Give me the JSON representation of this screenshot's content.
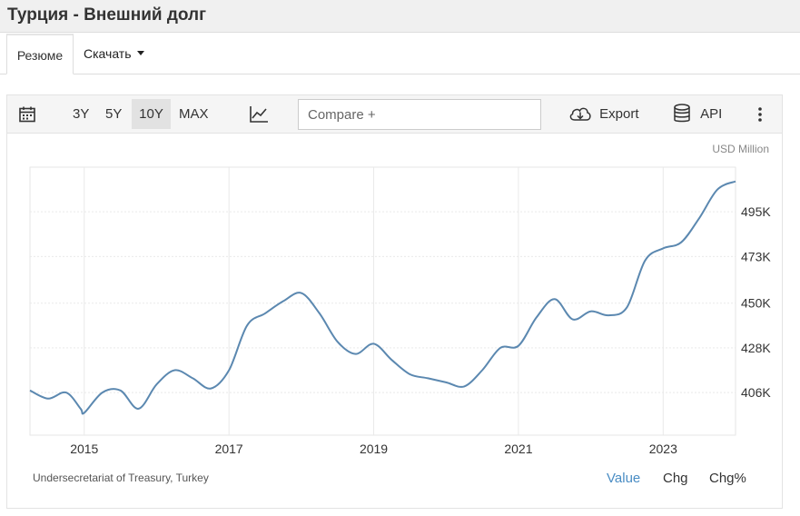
{
  "header": {
    "title": "Турция - Внешний долг"
  },
  "tabs": [
    {
      "label": "Резюме"
    },
    {
      "label": "Скачать"
    }
  ],
  "toolbar": {
    "calendar_icon": "calendar-icon",
    "ranges": [
      "3Y",
      "5Y",
      "10Y",
      "MAX"
    ],
    "active_range": "10Y",
    "chart_type_icon": "line-chart-icon",
    "compare_placeholder": "Compare +",
    "export_label": "Export",
    "api_label": "API",
    "more_icon": "vertical-dots-icon"
  },
  "chart_data": {
    "type": "line",
    "unit_label": "USD Million",
    "x_tick_labels": [
      "2015",
      "2017",
      "2019",
      "2021",
      "2023"
    ],
    "y_tick_labels": [
      "406K",
      "428K",
      "450K",
      "473K",
      "495K"
    ],
    "y_ticks": [
      406,
      428,
      450,
      473,
      495
    ],
    "xlim": [
      2014.25,
      2024.0
    ],
    "ylim": [
      385,
      517
    ],
    "grid": true,
    "color": "#5b88b0",
    "series": [
      {
        "x": [
          2014.25,
          2014.5,
          2014.75,
          2014.95,
          2015.0,
          2015.25,
          2015.5,
          2015.75,
          2016.0,
          2016.25,
          2016.5,
          2016.75,
          2017.0,
          2017.25,
          2017.5,
          2017.75,
          2018.0,
          2018.25,
          2018.5,
          2018.75,
          2019.0,
          2019.25,
          2019.5,
          2019.75,
          2020.0,
          2020.25,
          2020.5,
          2020.75,
          2021.0,
          2021.25,
          2021.5,
          2021.75,
          2022.0,
          2022.25,
          2022.5,
          2022.75,
          2023.0,
          2023.25,
          2023.5,
          2023.75,
          2024.0
        ],
        "y": [
          407,
          403,
          406,
          398,
          396,
          406,
          407,
          398,
          410,
          417,
          413,
          408,
          417,
          439,
          445,
          451,
          455,
          445,
          431,
          425,
          430,
          422,
          415,
          413,
          411,
          409,
          417,
          428,
          429,
          443,
          452,
          442,
          446,
          444,
          448,
          471,
          477,
          480,
          492,
          506,
          510
        ]
      }
    ]
  },
  "footer": {
    "source": "Undersecretariat of Treasury, Turkey",
    "tabs": [
      "Value",
      "Chg",
      "Chg%"
    ],
    "active": "Value"
  }
}
